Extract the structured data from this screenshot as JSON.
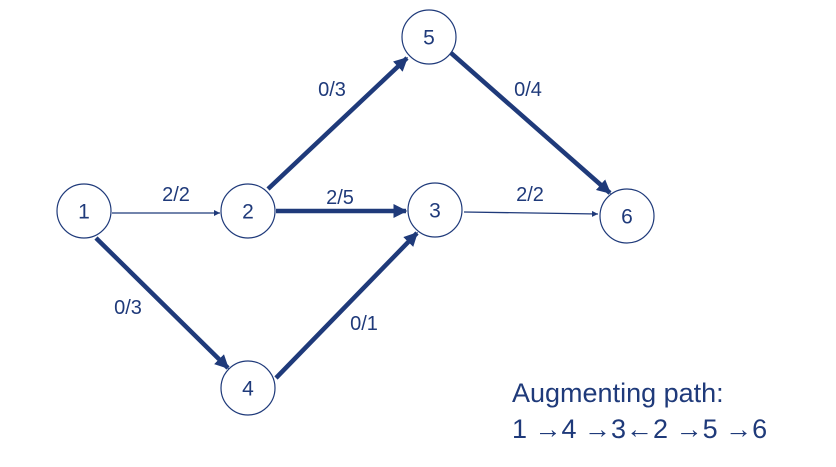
{
  "nodes": {
    "n1": "1",
    "n2": "2",
    "n3": "3",
    "n4": "4",
    "n5": "5",
    "n6": "6"
  },
  "edges": {
    "e12": "2/2",
    "e14": "0/3",
    "e23": "2/5",
    "e25": "0/3",
    "e36": "2/2",
    "e43": "0/1",
    "e56": "0/4"
  },
  "caption": {
    "line1": "Augmenting path:",
    "line2": "1 →4 →3←2 →5 →6"
  },
  "colors": {
    "primary": "#1f3a7a",
    "background": "#ffffff"
  }
}
